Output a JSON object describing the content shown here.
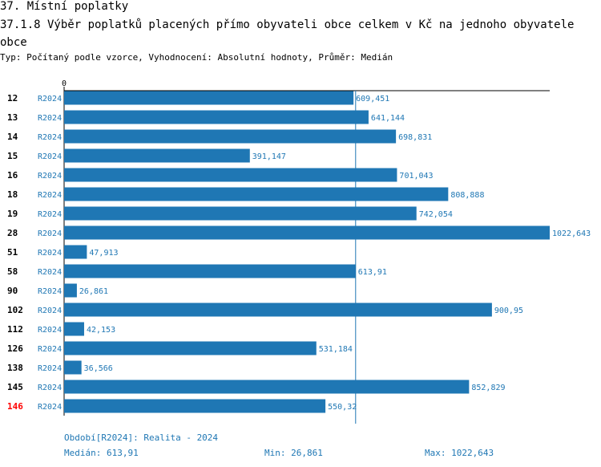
{
  "header": {
    "section": "37. Místní poplatky",
    "title": "37.1.8 Výběr poplatků placených přímo obyvateli obce celkem  v Kč na jednoho obyvatele obce",
    "subtitle": "Typ: Počítaný podle vzorce, Vyhodnocení: Absolutní hodnoty, Průměr: Medián"
  },
  "colors": {
    "bar": "#1f77b4",
    "label": "#1f77b4",
    "highlight": "#ff0000",
    "axis": "#000000",
    "median_line": "#1f77b4"
  },
  "chart_data": {
    "type": "bar",
    "orientation": "horizontal",
    "title": "37.1.8 Výběr poplatků placených přímo obyvateli obce celkem  v Kč na jednoho obyvatele obce",
    "xlim": [
      0,
      1022.643
    ],
    "x_tick_labels": [
      "0"
    ],
    "period_label": "R2024",
    "median": 613.91,
    "highlighted_category": "146",
    "categories": [
      "12",
      "13",
      "14",
      "15",
      "16",
      "18",
      "19",
      "28",
      "51",
      "58",
      "90",
      "102",
      "112",
      "126",
      "138",
      "145",
      "146"
    ],
    "values": [
      609.451,
      641.144,
      698.831,
      391.147,
      701.043,
      808.888,
      742.054,
      1022.643,
      47.913,
      613.91,
      26.861,
      900.95,
      42.153,
      531.184,
      36.566,
      852.829,
      550.32
    ],
    "value_labels": [
      "609,451",
      "641,144",
      "698,831",
      "391,147",
      "701,043",
      "808,888",
      "742,054",
      "1022,643",
      "47,913",
      "613,91",
      "26,861",
      "900,95",
      "42,153",
      "531,184",
      "36,566",
      "852,829",
      "550,32"
    ]
  },
  "footer": {
    "period": "Období[R2024]: Realita - 2024",
    "median": "Medián: 613,91",
    "min": "Min: 26,861",
    "max": "Max: 1022,643"
  }
}
